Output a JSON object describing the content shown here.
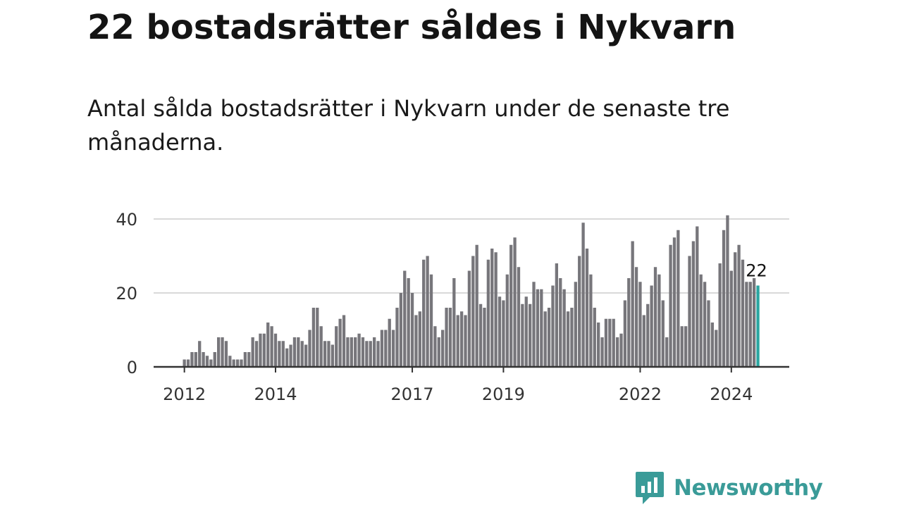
{
  "header": {
    "title": "22 bostadsrätter såldes i Nykvarn",
    "subtitle": "Antal sålda bostadsrätter i Nykvarn under de senaste tre månaderna."
  },
  "logo": {
    "text": "Newsworthy",
    "icon": "newsworthy-chat-bars-icon"
  },
  "colors": {
    "bar": "#77767b",
    "highlight": "#2aa6a1",
    "grid": "#d9d9d9",
    "axis": "#333333",
    "brand": "#3a9b98"
  },
  "chart_data": {
    "type": "bar",
    "x_start": "2012-01",
    "x_interval": "month",
    "x_tick_labels": [
      "2012",
      "2014",
      "2017",
      "2019",
      "2022",
      "2024"
    ],
    "y_tick_labels": [
      "0",
      "20",
      "40"
    ],
    "ylim": [
      0,
      42
    ],
    "grid": true,
    "highlight_label": "22",
    "values": [
      2,
      2,
      4,
      4,
      7,
      4,
      3,
      2,
      4,
      8,
      8,
      7,
      3,
      2,
      2,
      2,
      4,
      4,
      8,
      7,
      9,
      9,
      12,
      11,
      9,
      7,
      7,
      5,
      6,
      8,
      8,
      7,
      6,
      10,
      16,
      16,
      11,
      7,
      7,
      6,
      11,
      13,
      14,
      8,
      8,
      8,
      9,
      8,
      7,
      7,
      8,
      7,
      10,
      10,
      13,
      10,
      16,
      20,
      26,
      24,
      20,
      14,
      15,
      29,
      30,
      25,
      11,
      8,
      10,
      16,
      16,
      24,
      14,
      15,
      14,
      26,
      30,
      33,
      17,
      16,
      29,
      32,
      31,
      19,
      18,
      25,
      33,
      35,
      27,
      17,
      19,
      17,
      23,
      21,
      21,
      15,
      16,
      22,
      28,
      24,
      21,
      15,
      16,
      23,
      30,
      39,
      32,
      25,
      16,
      12,
      8,
      13,
      13,
      13,
      8,
      9,
      18,
      24,
      34,
      27,
      23,
      14,
      17,
      22,
      27,
      25,
      18,
      8,
      33,
      35,
      37,
      11,
      11,
      30,
      34,
      38,
      25,
      23,
      18,
      12,
      10,
      28,
      37,
      41,
      26,
      31,
      33,
      29,
      23,
      23,
      24,
      22
    ]
  }
}
